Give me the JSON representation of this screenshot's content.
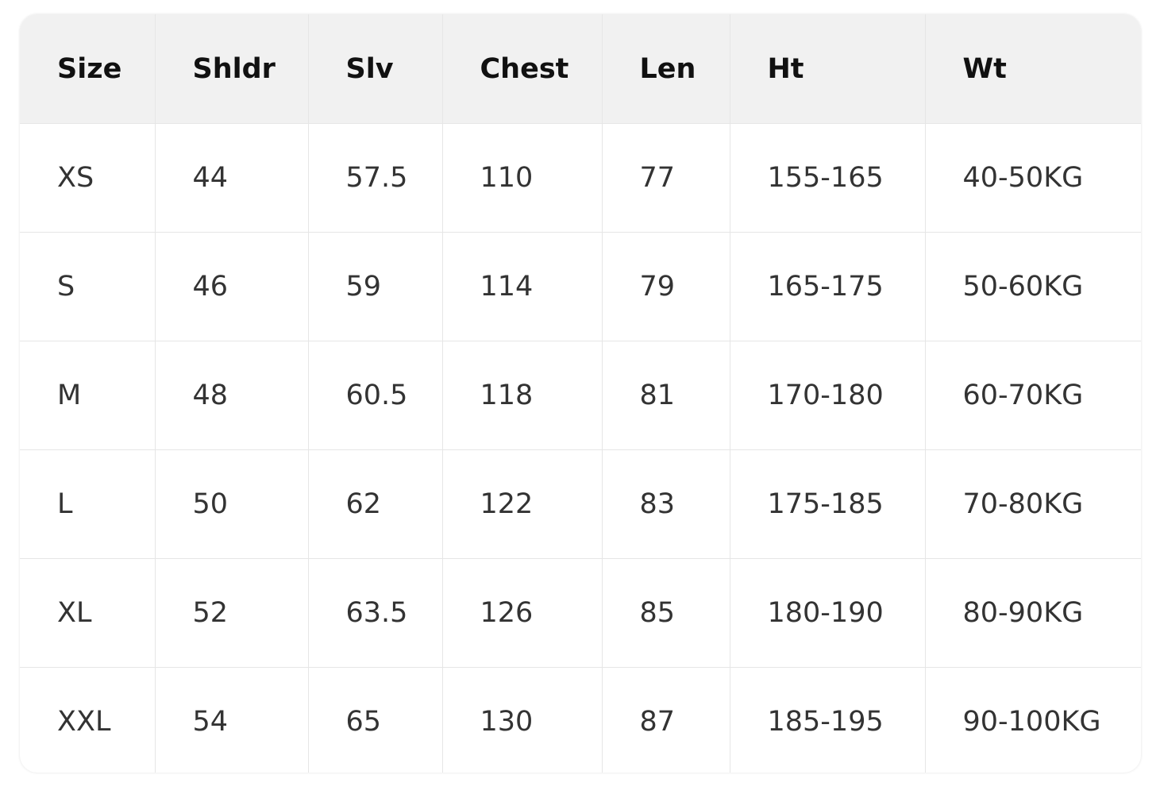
{
  "table": {
    "headers": [
      "Size",
      "Shldr",
      "Slv",
      "Chest",
      "Len",
      "Ht",
      "Wt"
    ],
    "rows": [
      [
        "XS",
        "44",
        "57.5",
        "110",
        "77",
        "155-165",
        "40-50KG"
      ],
      [
        "S",
        "46",
        "59",
        "114",
        "79",
        "165-175",
        "50-60KG"
      ],
      [
        "M",
        "48",
        "60.5",
        "118",
        "81",
        "170-180",
        "60-70KG"
      ],
      [
        "L",
        "50",
        "62",
        "122",
        "83",
        "175-185",
        "70-80KG"
      ],
      [
        "XL",
        "52",
        "63.5",
        "126",
        "85",
        "180-190",
        "80-90KG"
      ],
      [
        "XXL",
        "54",
        "65",
        "130",
        "87",
        "185-195",
        "90-100KG"
      ]
    ]
  },
  "colors": {
    "header_bg": "#f1f1f1",
    "border": "#e6e6e6",
    "text": "#333333"
  }
}
